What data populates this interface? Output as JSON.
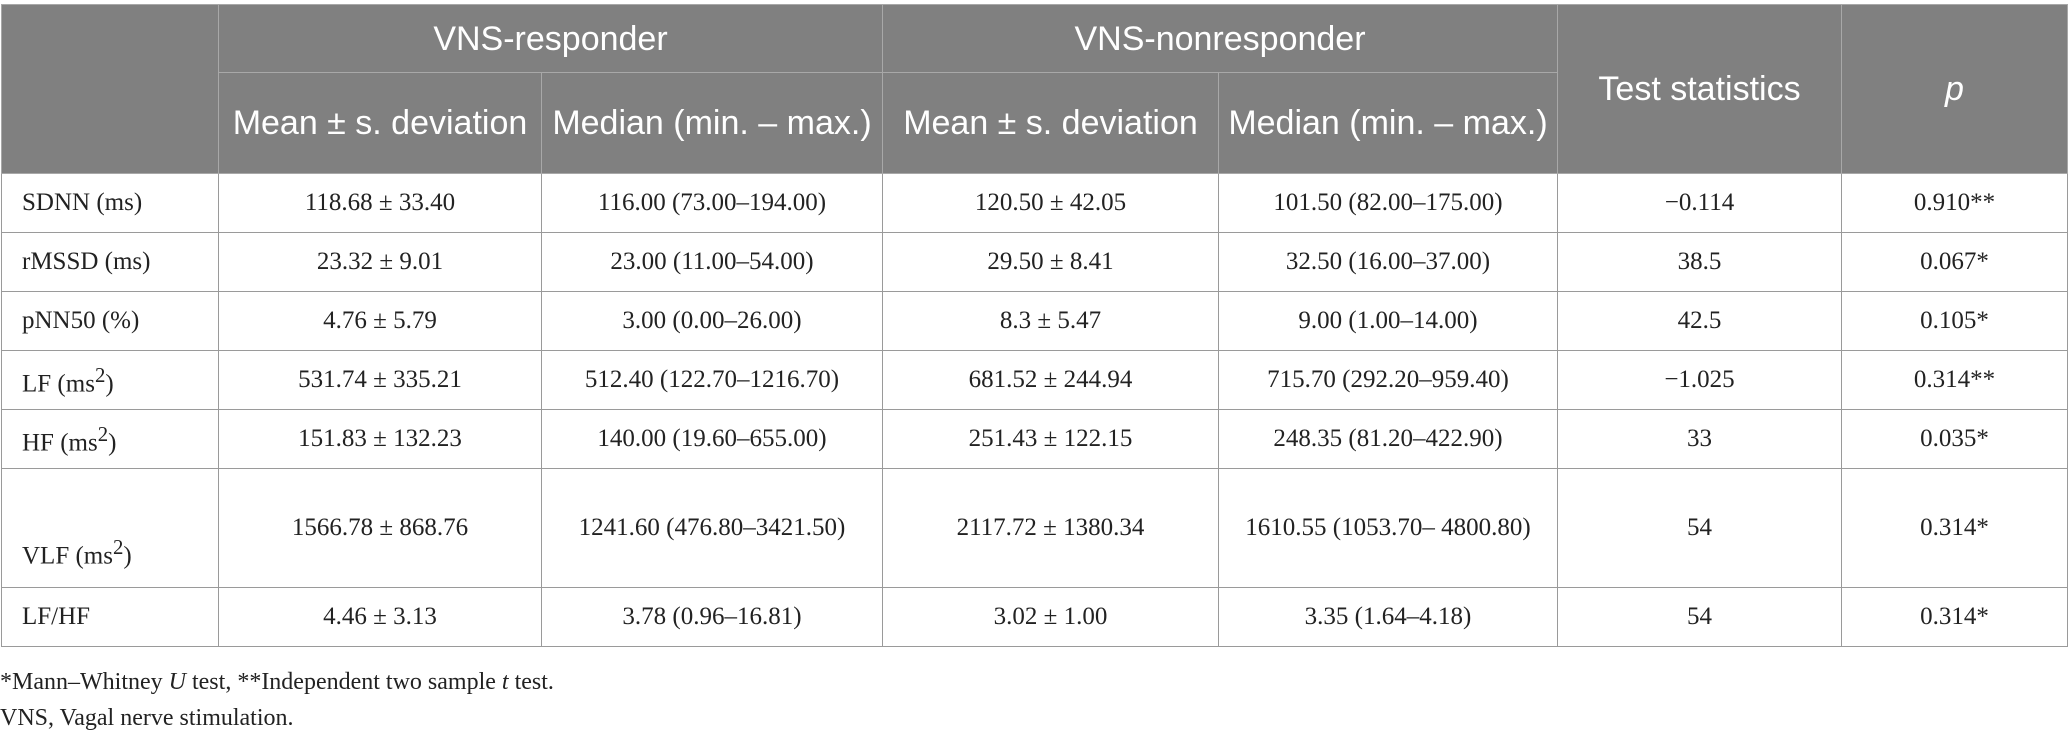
{
  "header": {
    "group_responder": "VNS-responder",
    "group_nonresponder": "VNS-nonresponder",
    "col_mean": "Mean ± s. deviation",
    "col_median": "Median (min. – max.)",
    "col_test": "Test statistics",
    "col_p": "p"
  },
  "rows": [
    {
      "label_base": "SDNN (ms)",
      "label_sup": "",
      "resp_mean": "118.68 ± 33.40",
      "resp_median": "116.00 (73.00–194.00)",
      "nonresp_mean": "120.50 ± 42.05",
      "nonresp_median": "101.50 (82.00–175.00)",
      "test": "−0.114",
      "p": "0.910**"
    },
    {
      "label_base": "rMSSD (ms)",
      "label_sup": "",
      "resp_mean": "23.32 ± 9.01",
      "resp_median": "23.00 (11.00–54.00)",
      "nonresp_mean": "29.50 ± 8.41",
      "nonresp_median": "32.50 (16.00–37.00)",
      "test": "38.5",
      "p": "0.067*"
    },
    {
      "label_base": "pNN50 (%)",
      "label_sup": "",
      "resp_mean": "4.76 ± 5.79",
      "resp_median": "3.00 (0.00–26.00)",
      "nonresp_mean": "8.3 ± 5.47",
      "nonresp_median": "9.00 (1.00–14.00)",
      "test": "42.5",
      "p": "0.105*"
    },
    {
      "label_base": "LF (ms",
      "label_sup": "2",
      "label_end": ")",
      "resp_mean": "531.74 ± 335.21",
      "resp_median": "512.40 (122.70–1216.70)",
      "nonresp_mean": "681.52 ± 244.94",
      "nonresp_median": "715.70 (292.20–959.40)",
      "test": "−1.025",
      "p": "0.314**"
    },
    {
      "label_base": "HF (ms",
      "label_sup": "2",
      "label_end": ")",
      "resp_mean": "151.83 ± 132.23",
      "resp_median": "140.00 (19.60–655.00)",
      "nonresp_mean": "251.43 ± 122.15",
      "nonresp_median": "248.35 (81.20–422.90)",
      "test": "33",
      "p": "0.035*"
    },
    {
      "label_base": "VLF (ms",
      "label_sup": "2",
      "label_end": ")",
      "resp_mean": "1566.78 ± 868.76",
      "resp_median": "1241.60 (476.80–3421.50)",
      "nonresp_mean": "2117.72 ± 1380.34",
      "nonresp_median": "1610.55 (1053.70– 4800.80)",
      "test": "54",
      "p": "0.314*"
    },
    {
      "label_base": "LF/HF",
      "label_sup": "",
      "resp_mean": "4.46 ± 3.13",
      "resp_median": "3.78 (0.96–16.81)",
      "nonresp_mean": "3.02 ± 1.00",
      "nonresp_median": "3.35 (1.64–4.18)",
      "test": "54",
      "p": "0.314*"
    }
  ],
  "footnotes": {
    "line1_a": "*Mann–Whitney ",
    "line1_u": "U",
    "line1_b": " test, **Independent two sample ",
    "line1_t": "t",
    "line1_c": " test.",
    "line2": "VNS, Vagal nerve stimulation."
  }
}
